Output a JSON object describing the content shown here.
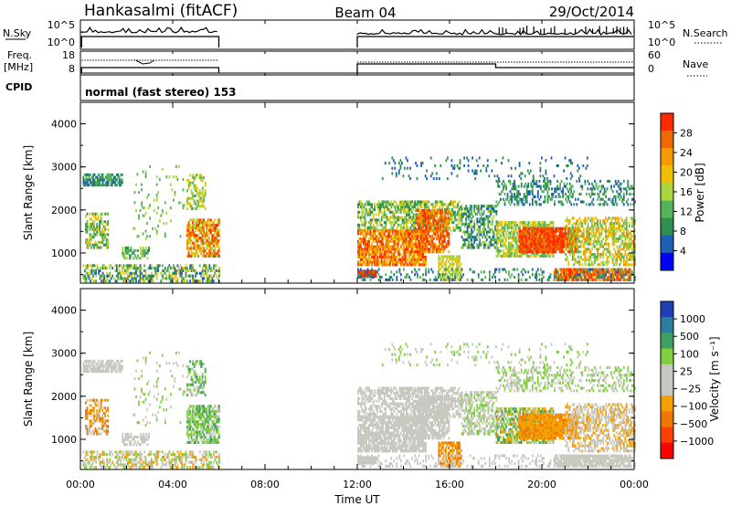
{
  "header": {
    "station": "Hankasalmi (fitACF)",
    "beam": "Beam 04",
    "date": "29/Oct/2014"
  },
  "strip_labels": {
    "nsky": "N.Sky",
    "nsearch": "N.Search",
    "freq_line1": "Freq.",
    "freq_line2": "[MHz]",
    "nave": "Nave",
    "cpid": "CPID",
    "cpid_value": "normal (fast stereo) 153"
  },
  "strip_ticks": {
    "nsky_top": "10^5",
    "nsky_bottom": "10^0",
    "nsearch_top": "10^5",
    "nsearch_bottom": "10^0",
    "freq_top": "18",
    "freq_bottom": "8",
    "nave_top": "60",
    "nave_bottom": "0"
  },
  "colors": {
    "power_scale": [
      "#0000ff",
      "#1f5fb4",
      "#2f8f4f",
      "#55b25a",
      "#a8d63f",
      "#f0c000",
      "#f59a00",
      "#ee6a00",
      "#ff2a00"
    ],
    "velocity_scale": [
      "#1f3fb4",
      "#2a7f9f",
      "#3fa060",
      "#7fcf3f",
      "#c8c8c0",
      "#c8c8c0",
      "#f5a000",
      "#f07800",
      "#ff4000",
      "#ff0000"
    ]
  },
  "chart_data": [
    {
      "type": "heatmap",
      "name": "power",
      "ylabel": "Slant Range [km]",
      "y_ticks": [
        "1000",
        "2000",
        "3000",
        "4000"
      ],
      "ylim": [
        300,
        4500
      ],
      "x_ticks": [
        "00:00",
        "04:00",
        "08:00",
        "12:00",
        "16:00",
        "20:00",
        "00:00"
      ],
      "xlim_hours": [
        0,
        24
      ],
      "colorbar_label": "Power [dB]",
      "colorbar_ticks": [
        "4",
        "8",
        "12",
        "16",
        "20",
        "24",
        "28"
      ],
      "data_gaps_hours": [
        [
          6,
          12
        ]
      ]
    },
    {
      "type": "heatmap",
      "name": "velocity",
      "ylabel": "Slant Range [km]",
      "y_ticks": [
        "1000",
        "2000",
        "3000",
        "4000"
      ],
      "ylim": [
        300,
        4500
      ],
      "x_ticks": [
        "00:00",
        "04:00",
        "08:00",
        "12:00",
        "16:00",
        "20:00",
        "00:00"
      ],
      "xlim_hours": [
        0,
        24
      ],
      "xlabel": "Time UT",
      "colorbar_label": "Velocity [m s⁻¹]",
      "colorbar_ticks": [
        "1000",
        "500",
        "100",
        "25",
        "−25",
        "−100",
        "−500",
        "−1000"
      ],
      "data_gaps_hours": [
        [
          6,
          12
        ]
      ]
    }
  ]
}
